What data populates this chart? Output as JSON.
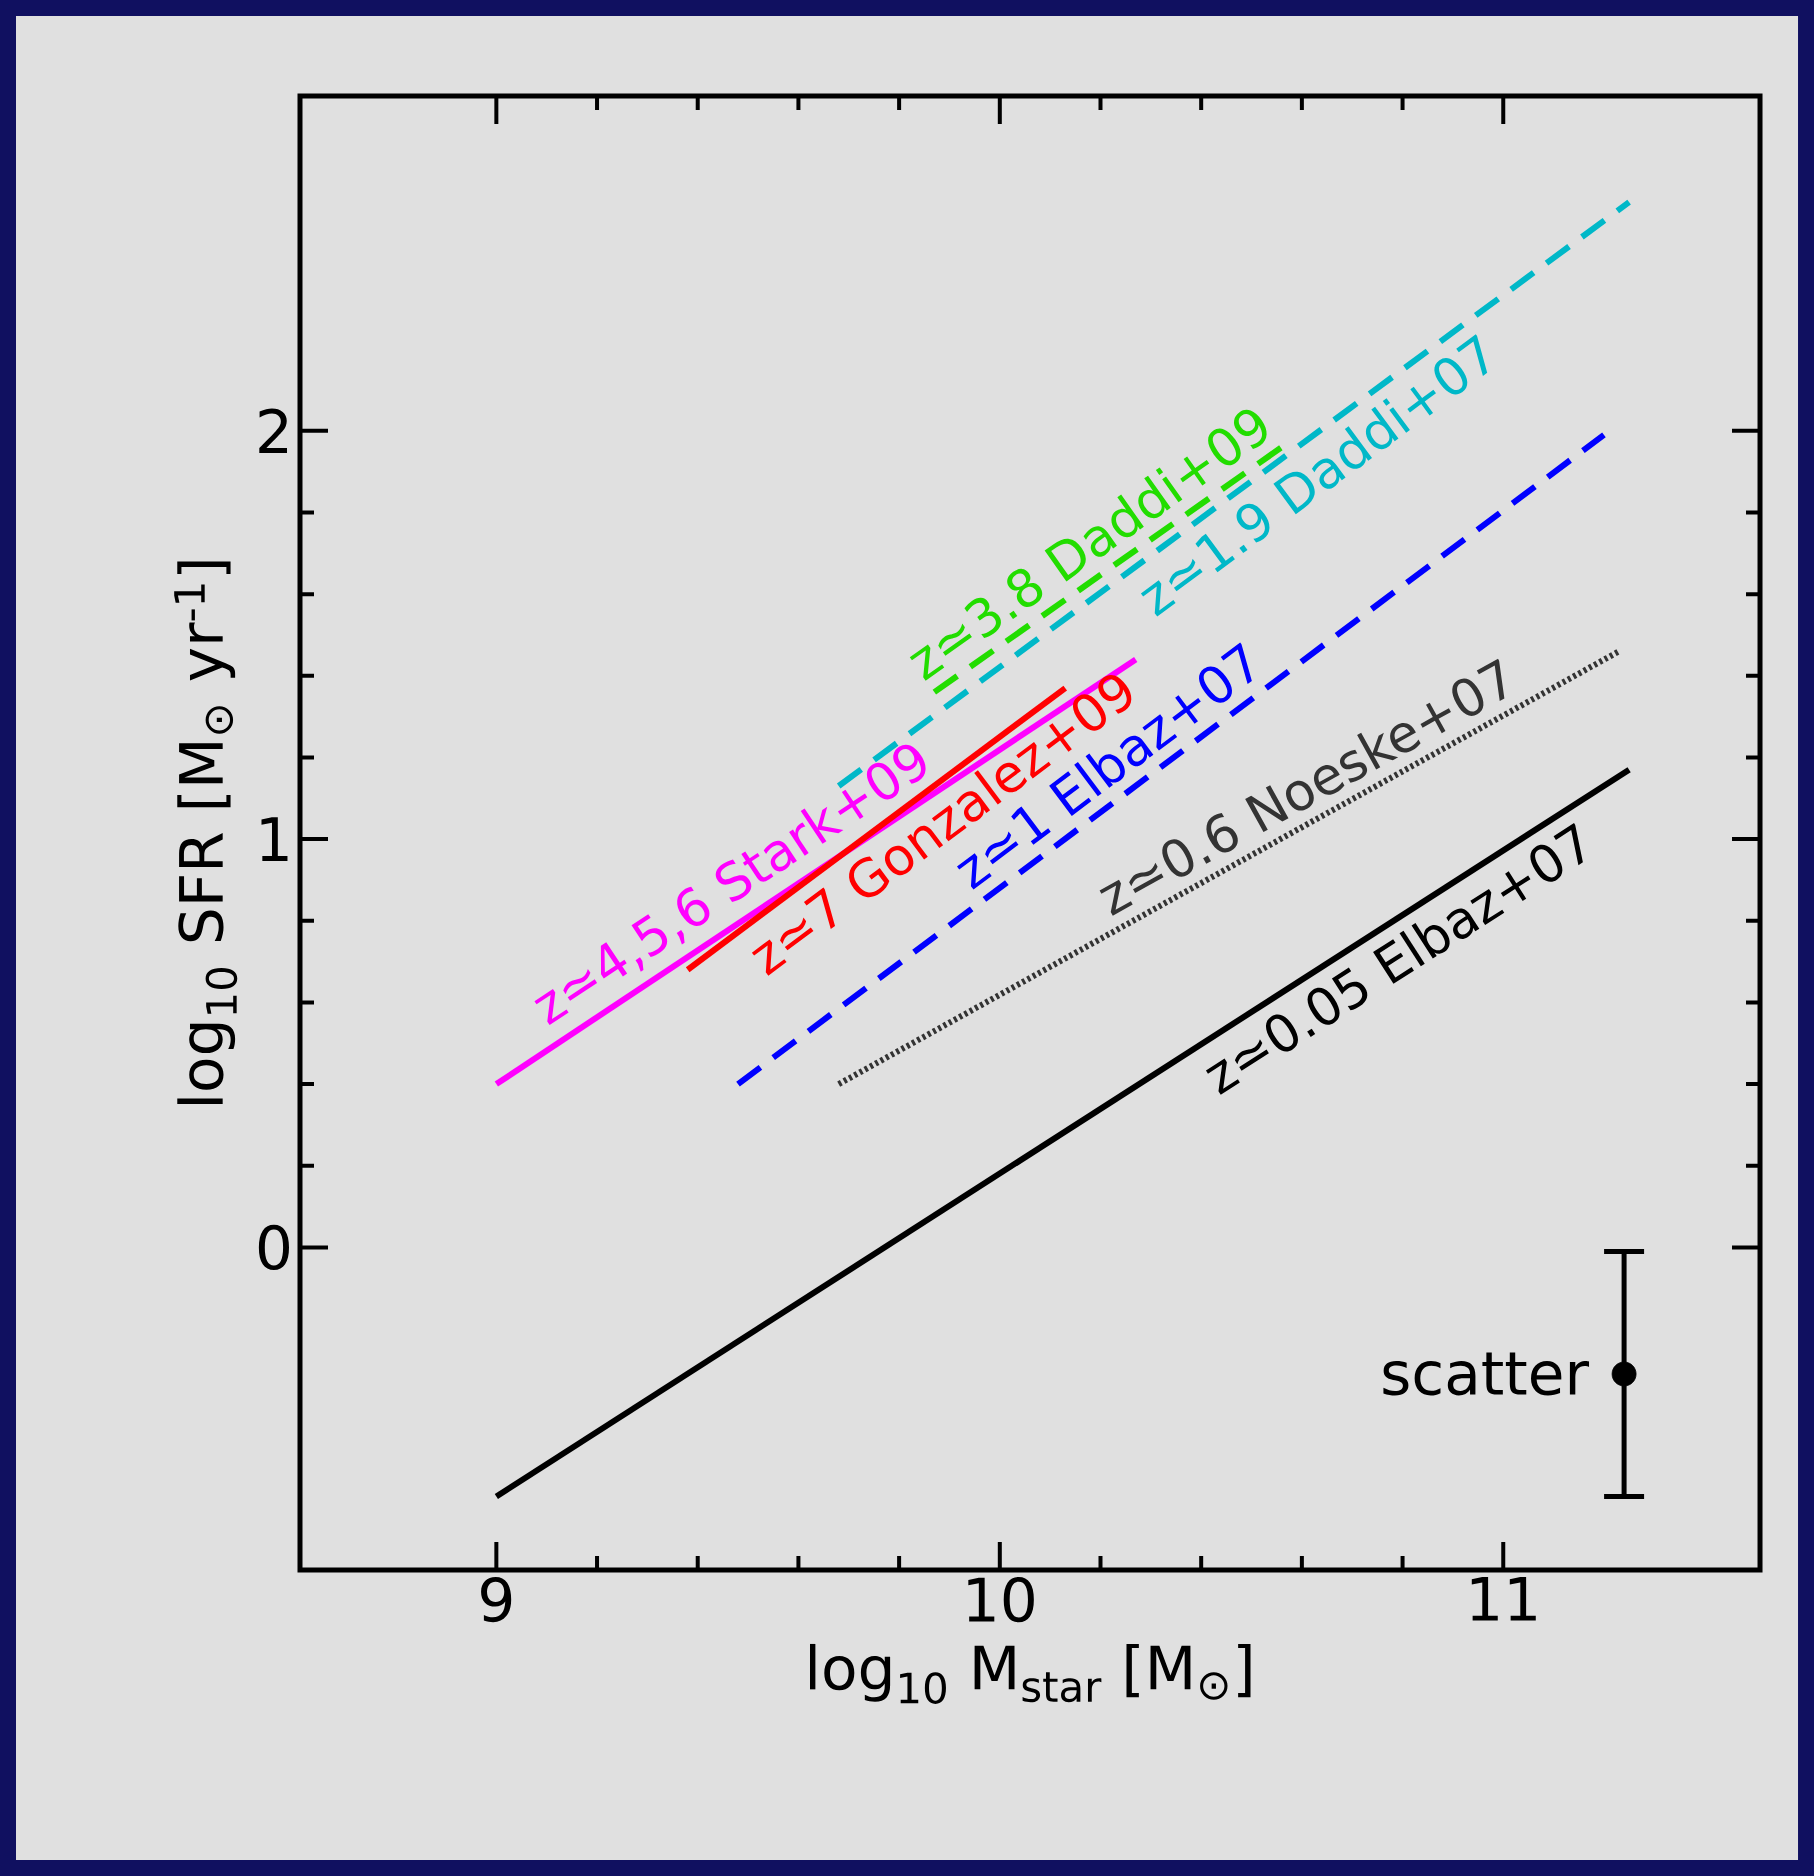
{
  "chart_data": {
    "type": "line",
    "xlabel": "log$_{10}$ M$_{star}$ [M$_{⊙}$]",
    "ylabel": "log$_{10}$ SFR [M$_{⊙}$ yr$^{-1}$]",
    "xlim": [
      8.61,
      11.51
    ],
    "ylim": [
      -0.79,
      2.82
    ],
    "xticks": [
      9,
      10,
      11
    ],
    "yticks": [
      0,
      1,
      2
    ],
    "grid": false,
    "series": [
      {
        "name": "z≃0.05 Elbaz+07",
        "color": "#000000",
        "line_style": "solid",
        "x": [
          9.0,
          11.25
        ],
        "values": [
          -0.61,
          1.17
        ]
      },
      {
        "name": "z≃0.6 Noeske+07",
        "color": "#333333",
        "line_style": "dotted",
        "x": [
          9.68,
          11.23
        ],
        "values": [
          0.4,
          1.46
        ]
      },
      {
        "name": "z≃1 Elbaz+07",
        "color": "#0000ff",
        "line_style": "dashed",
        "x": [
          9.48,
          11.2
        ],
        "values": [
          0.4,
          1.99
        ]
      },
      {
        "name": "z≃1.9 Daddi+07",
        "color": "#00b8c8",
        "line_style": "dashed",
        "x": [
          9.68,
          11.25
        ],
        "values": [
          1.13,
          2.56
        ]
      },
      {
        "name": "z≃3.8 Daddi+09",
        "color": "#22dd00",
        "line_style": "dashed",
        "x": [
          9.87,
          10.56
        ],
        "values": [
          1.36,
          1.96
        ]
      },
      {
        "name": "z≃4,5,6 Stark+09",
        "color": "#ff00ff",
        "line_style": "solid",
        "x": [
          9.0,
          10.27
        ],
        "values": [
          0.4,
          1.44
        ]
      },
      {
        "name": "z≃7 Gonzalez+09",
        "color": "#ff0000",
        "line_style": "solid",
        "x": [
          9.38,
          10.13
        ],
        "values": [
          0.68,
          1.37
        ]
      },
      {
        "name": "scatter",
        "type": "scatter",
        "marker": "circle",
        "color": "#000000",
        "x": [
          11.24
        ],
        "values": [
          -0.31
        ],
        "errors": [
          0.3
        ]
      }
    ]
  }
}
